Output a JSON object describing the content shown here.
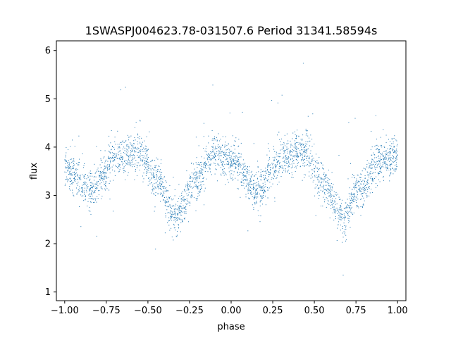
{
  "chart_data": {
    "type": "scatter",
    "title": "1SWASPJ004623.78-031507.6 Period 31341.58594s",
    "xlabel": "phase",
    "ylabel": "flux",
    "xlim": [
      -1.05,
      1.05
    ],
    "ylim": [
      0.82,
      6.2
    ],
    "x_ticks": [
      -1.0,
      -0.75,
      -0.5,
      -0.25,
      0.0,
      0.25,
      0.5,
      0.75,
      1.0
    ],
    "x_tick_labels": [
      "−1.00",
      "−0.75",
      "−0.50",
      "−0.25",
      "0.00",
      "0.25",
      "0.50",
      "0.75",
      "1.00"
    ],
    "y_ticks": [
      1,
      2,
      3,
      4,
      5,
      6
    ],
    "y_tick_labels": [
      "1",
      "2",
      "3",
      "4",
      "5",
      "6"
    ],
    "grid": false,
    "marker_color": "#1f77b4",
    "series": [
      {
        "x_range": [
          -1.0,
          1.0
        ],
        "trend_phase": [
          -1.0,
          -0.85,
          -0.68,
          -0.55,
          -0.45,
          -0.33,
          -0.22,
          -0.1,
          0.0,
          0.15,
          0.32,
          0.45,
          0.55,
          0.67,
          0.78,
          0.9,
          1.0
        ],
        "trend_flux": [
          3.6,
          3.1,
          3.8,
          3.9,
          3.3,
          2.55,
          3.3,
          3.85,
          3.75,
          3.1,
          3.8,
          3.9,
          3.3,
          2.55,
          3.2,
          3.7,
          3.8
        ]
      }
    ]
  }
}
